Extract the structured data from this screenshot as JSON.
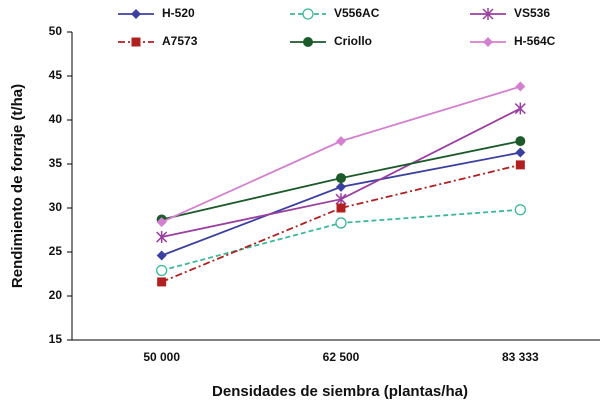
{
  "chart_data": {
    "type": "line",
    "y_label": "Rendimiento de forraje (t/ha)",
    "x_label": "Densidades de siembra (plantas/ha)",
    "categories": [
      "50 000",
      "62 500",
      "83 333"
    ],
    "ylim": [
      15,
      50
    ],
    "yticks": [
      15,
      20,
      25,
      30,
      35,
      40,
      45,
      50
    ],
    "grid": false,
    "legend": "top",
    "series": [
      {
        "name": "H-520",
        "color": "#3b40a0",
        "marker": "diamond",
        "dash": "solid",
        "values": [
          24.6,
          32.4,
          36.3
        ]
      },
      {
        "name": "V556AC",
        "color": "#3bb89a",
        "marker": "open-circle",
        "dash": "dashed",
        "values": [
          22.9,
          28.3,
          29.8
        ]
      },
      {
        "name": "VS536",
        "color": "#9a3fa0",
        "marker": "star",
        "dash": "solid",
        "values": [
          26.7,
          31.0,
          41.3
        ]
      },
      {
        "name": "A7573",
        "color": "#b02020",
        "marker": "square",
        "dash": "dashdot",
        "values": [
          21.6,
          30.0,
          34.9
        ]
      },
      {
        "name": "Criollo",
        "color": "#1c5a2a",
        "marker": "circle",
        "dash": "solid",
        "values": [
          28.7,
          33.4,
          37.6
        ]
      },
      {
        "name": "H-564C",
        "color": "#d47fcf",
        "marker": "diamond",
        "dash": "solid",
        "values": [
          28.4,
          37.6,
          43.8
        ]
      }
    ]
  }
}
